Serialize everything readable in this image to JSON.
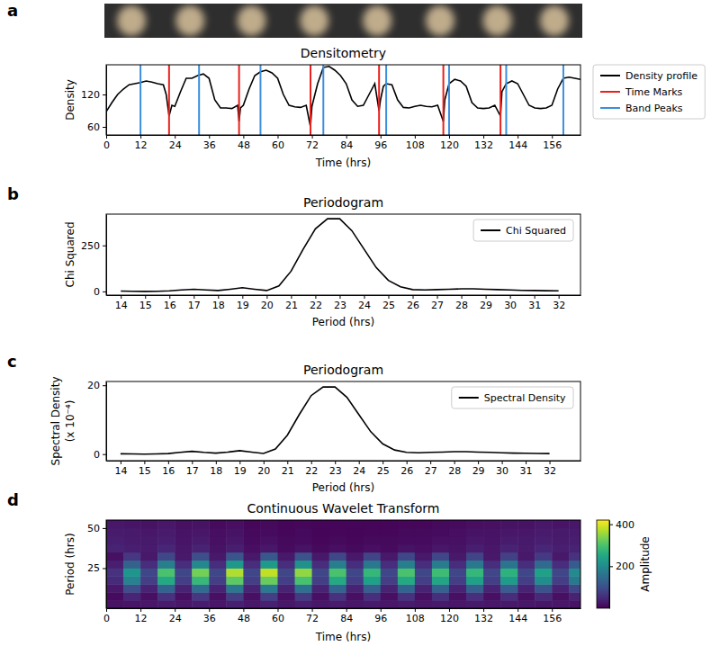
{
  "chart_data": [
    {
      "type": "line",
      "panel": "a",
      "title": "Densitometry",
      "xlabel": "Time (hrs)",
      "ylabel": "Density",
      "xlim": [
        0,
        166
      ],
      "xticks": [
        0,
        12,
        24,
        36,
        48,
        60,
        72,
        84,
        96,
        108,
        120,
        132,
        144,
        156
      ],
      "ylim": [
        45,
        175
      ],
      "yticks": [
        60,
        120
      ],
      "legend": "right",
      "series": [
        {
          "name": "Density profile",
          "color": "black",
          "type": "line",
          "x": [
            0,
            2,
            4,
            6,
            8,
            10,
            12,
            14,
            16,
            18,
            20,
            21,
            22,
            23,
            24,
            26,
            28,
            30,
            32,
            34,
            36,
            38,
            40,
            42,
            44,
            46,
            46.5,
            47,
            48,
            50,
            52,
            54,
            56,
            58,
            60,
            62,
            64,
            66,
            68,
            70,
            71.5,
            72,
            74,
            76,
            78,
            80,
            82,
            84,
            86,
            88,
            90,
            92,
            94,
            95.5,
            96,
            97,
            98,
            100,
            102,
            104,
            106,
            108,
            110,
            112,
            114,
            116,
            118,
            118.5,
            120,
            122,
            124,
            126,
            128,
            130,
            132,
            134,
            136,
            138,
            138.5,
            140,
            142,
            144,
            146,
            148,
            150,
            152,
            154,
            156,
            158,
            160,
            162,
            164,
            166
          ],
          "values": [
            88,
            105,
            120,
            130,
            138,
            140,
            142,
            145,
            143,
            140,
            138,
            120,
            80,
            100,
            98,
            125,
            150,
            150,
            155,
            158,
            150,
            110,
            95,
            95,
            94,
            100,
            70,
            95,
            100,
            130,
            155,
            162,
            165,
            160,
            150,
            120,
            100,
            97,
            96,
            100,
            60,
            98,
            140,
            170,
            172,
            165,
            155,
            140,
            110,
            98,
            100,
            120,
            140,
            90,
            110,
            135,
            140,
            138,
            110,
            96,
            95,
            98,
            100,
            98,
            97,
            100,
            70,
            110,
            140,
            148,
            145,
            135,
            105,
            95,
            94,
            95,
            100,
            80,
            125,
            140,
            145,
            140,
            120,
            100,
            95,
            94,
            95,
            100,
            130,
            150,
            152,
            150,
            148
          ]
        },
        {
          "name": "Time Marks",
          "color": "#e8211d",
          "type": "vline",
          "x": [
            22,
            46.5,
            71.5,
            95.5,
            118,
            138
          ]
        },
        {
          "name": "Band Peaks",
          "color": "#3b8ede",
          "type": "vline",
          "x": [
            12,
            32.5,
            54,
            76,
            98,
            120,
            140,
            160
          ]
        }
      ]
    },
    {
      "type": "line",
      "panel": "b",
      "title": "Periodogram",
      "xlabel": "Period (hrs)",
      "ylabel": "Chi Squared",
      "xlim": [
        13.4,
        32.9
      ],
      "xticks": [
        14,
        15,
        16,
        17,
        18,
        19,
        20,
        21,
        22,
        23,
        24,
        25,
        26,
        27,
        28,
        29,
        30,
        31,
        32
      ],
      "ylim": [
        -20,
        420
      ],
      "yticks": [
        0,
        250
      ],
      "legend": "upper-right",
      "series": [
        {
          "name": "Chi Squared",
          "color": "black",
          "type": "line",
          "x": [
            14,
            14.5,
            15,
            15.5,
            16,
            16.5,
            17,
            17.5,
            18,
            18.5,
            19,
            19.5,
            20,
            20.5,
            21,
            21.5,
            22,
            22.5,
            23,
            23.5,
            24,
            24.5,
            25,
            25.5,
            26,
            26.5,
            27,
            27.5,
            28,
            28.5,
            29,
            29.5,
            30,
            30.5,
            31,
            31.5,
            32
          ],
          "values": [
            2,
            1,
            0,
            1,
            3,
            8,
            12,
            8,
            5,
            12,
            20,
            12,
            5,
            30,
            110,
            230,
            340,
            395,
            395,
            330,
            230,
            130,
            60,
            25,
            10,
            8,
            10,
            12,
            14,
            14,
            12,
            10,
            8,
            6,
            5,
            4,
            3
          ]
        }
      ]
    },
    {
      "type": "line",
      "panel": "c",
      "title": "Periodogram",
      "xlabel": "Period (hrs)",
      "ylabel": [
        "Spectral Density",
        "(x 10⁻⁴)"
      ],
      "xlim": [
        13.4,
        33.3
      ],
      "xticks": [
        14,
        15,
        16,
        17,
        18,
        19,
        20,
        21,
        22,
        23,
        24,
        25,
        26,
        27,
        28,
        29,
        30,
        31,
        32
      ],
      "ylim": [
        -1.9,
        21.1
      ],
      "yticks": [
        0,
        20
      ],
      "legend": "upper-right",
      "series": [
        {
          "name": "Spectral Density",
          "color": "black",
          "type": "line",
          "x": [
            14,
            14.5,
            15,
            15.5,
            16,
            16.5,
            17,
            17.5,
            18,
            18.5,
            19,
            19.5,
            20,
            20.5,
            21,
            21.5,
            22,
            22.5,
            23,
            23.5,
            24,
            24.5,
            25,
            25.5,
            26,
            26.5,
            27,
            27.5,
            28,
            28.5,
            29,
            29.5,
            30,
            30.5,
            31,
            31.5,
            32
          ],
          "values": [
            0.1,
            0.05,
            0,
            0.05,
            0.15,
            0.5,
            0.8,
            0.5,
            0.3,
            0.6,
            1.0,
            0.6,
            0.2,
            1.5,
            5.5,
            11.5,
            17,
            19.5,
            19.5,
            16.5,
            11.5,
            6.5,
            3,
            1.2,
            0.5,
            0.4,
            0.5,
            0.6,
            0.7,
            0.7,
            0.6,
            0.5,
            0.4,
            0.3,
            0.25,
            0.2,
            0.15
          ]
        }
      ]
    },
    {
      "type": "heatmap",
      "panel": "d",
      "title": "Continuous Wavelet Transform",
      "xlabel": "Time (hrs)",
      "ylabel": "Period (hrs)",
      "xlim": [
        0,
        166
      ],
      "xticks": [
        0,
        12,
        24,
        36,
        48,
        60,
        72,
        84,
        96,
        108,
        120,
        132,
        144,
        156
      ],
      "ylim": [
        0,
        55
      ],
      "yticks": [
        25,
        50
      ],
      "color": "viridis",
      "x_bins": [
        0,
        6,
        12,
        18,
        24,
        30,
        36,
        42,
        48,
        54,
        60,
        66,
        72,
        78,
        84,
        90,
        96,
        102,
        108,
        114,
        120,
        126,
        132,
        138,
        144,
        150,
        156,
        162,
        166
      ],
      "y_bins": [
        0,
        5,
        10,
        15,
        20,
        25,
        30,
        35,
        40,
        45,
        50,
        55
      ],
      "cells": [
        [
          20,
          22,
          25,
          30,
          25,
          33,
          25,
          37,
          25,
          38,
          25,
          35,
          25,
          30,
          25,
          28,
          25,
          30,
          25,
          29,
          25,
          28,
          25,
          27,
          25,
          24,
          25,
          20
        ],
        [
          12,
          44,
          18,
          60,
          18,
          66,
          18,
          74,
          18,
          76,
          18,
          70,
          18,
          60,
          18,
          56,
          18,
          60,
          18,
          58,
          18,
          56,
          18,
          54,
          18,
          48,
          18,
          40
        ],
        [
          27,
          99,
          40,
          135,
          40,
          149,
          40,
          167,
          40,
          171,
          40,
          158,
          40,
          135,
          40,
          126,
          40,
          135,
          40,
          131,
          40,
          126,
          40,
          122,
          40,
          108,
          40,
          90
        ],
        [
          50,
          187,
          77,
          255,
          77,
          281,
          77,
          315,
          77,
          323,
          77,
          298,
          77,
          255,
          77,
          238,
          77,
          255,
          77,
          247,
          77,
          238,
          77,
          230,
          77,
          204,
          77,
          170
        ],
        [
          60,
          220,
          90,
          300,
          90,
          330,
          90,
          370,
          90,
          380,
          90,
          350,
          90,
          300,
          90,
          280,
          90,
          300,
          90,
          290,
          90,
          280,
          90,
          270,
          90,
          240,
          90,
          200
        ],
        [
          36,
          132,
          54,
          180,
          54,
          198,
          54,
          222,
          54,
          228,
          54,
          210,
          54,
          180,
          54,
          168,
          54,
          180,
          54,
          174,
          54,
          168,
          54,
          162,
          54,
          144,
          54,
          120
        ],
        [
          18,
          66,
          27,
          90,
          27,
          99,
          27,
          111,
          27,
          114,
          27,
          105,
          27,
          90,
          27,
          84,
          27,
          90,
          27,
          87,
          27,
          84,
          27,
          81,
          27,
          72,
          27,
          60
        ],
        [
          40,
          35,
          30,
          45,
          25,
          40,
          20,
          35,
          15,
          25,
          12,
          20,
          10,
          15,
          10,
          15,
          12,
          20,
          15,
          25,
          20,
          35,
          25,
          40,
          30,
          45,
          35,
          40
        ],
        [
          35,
          30,
          28,
          35,
          22,
          30,
          18,
          25,
          12,
          18,
          10,
          12,
          8,
          10,
          8,
          10,
          10,
          12,
          12,
          18,
          18,
          25,
          22,
          30,
          28,
          35,
          30,
          35
        ],
        [
          30,
          28,
          25,
          30,
          20,
          25,
          15,
          20,
          10,
          12,
          8,
          10,
          6,
          8,
          6,
          8,
          8,
          10,
          10,
          12,
          15,
          20,
          20,
          25,
          25,
          30,
          28,
          30
        ],
        [
          25,
          22,
          20,
          25,
          18,
          20,
          12,
          15,
          8,
          10,
          6,
          8,
          5,
          6,
          5,
          6,
          6,
          8,
          8,
          10,
          12,
          15,
          18,
          20,
          20,
          25,
          22,
          25
        ]
      ],
      "colorbar_label": "Amplitude",
      "colorbar_range": [
        0,
        420
      ],
      "colorbar_ticks": [
        200,
        400
      ]
    }
  ]
}
